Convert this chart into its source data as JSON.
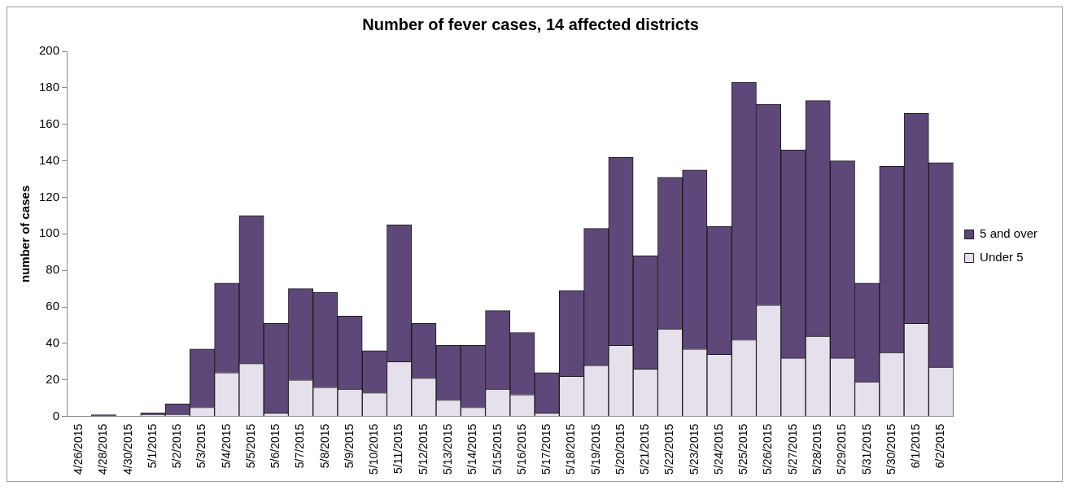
{
  "chart_data": {
    "type": "bar",
    "title": "Number of fever cases, 14 affected districts",
    "ylabel": "number of cases",
    "categories": [
      "4/26/2015",
      "4/28/2015",
      "4/30/2015",
      "5/1/2015",
      "5/2/2015",
      "5/3/2015",
      "5/4/2015",
      "5/5/2015",
      "5/6/2015",
      "5/7/2015",
      "5/8/2015",
      "5/9/2015",
      "5/10/2015",
      "5/11/2015",
      "5/12/2015",
      "5/13/2015",
      "5/14/2015",
      "5/15/2015",
      "5/16/2015",
      "5/17/2015",
      "5/18/2015",
      "5/19/2015",
      "5/20/2015",
      "5/21/2015",
      "5/22/2015",
      "5/23/2015",
      "5/24/2015",
      "5/25/2015",
      "5/26/2015",
      "5/27/2015",
      "5/28/2015",
      "5/29/2015",
      "5/31/2015",
      "5/30/2015",
      "6/1/2015",
      "6/2/2015"
    ],
    "series": [
      {
        "name": "Under 5",
        "color": "#e6e0ec",
        "values": [
          0,
          0,
          0,
          1,
          1,
          5,
          24,
          29,
          2,
          20,
          16,
          15,
          13,
          30,
          21,
          9,
          5,
          15,
          12,
          2,
          22,
          28,
          39,
          26,
          48,
          37,
          34,
          42,
          61,
          32,
          44,
          32,
          19,
          35,
          51,
          27
        ]
      },
      {
        "name": "5 and over",
        "color": "#5e4879",
        "values": [
          0,
          1,
          0,
          1,
          6,
          32,
          49,
          81,
          49,
          50,
          52,
          40,
          23,
          75,
          30,
          30,
          34,
          43,
          34,
          22,
          47,
          75,
          103,
          62,
          83,
          98,
          70,
          141,
          110,
          114,
          129,
          108,
          54,
          102,
          115,
          112
        ]
      }
    ],
    "stacked": true,
    "ylim": [
      0,
      200
    ],
    "yticks": [
      0,
      20,
      40,
      60,
      80,
      100,
      120,
      140,
      160,
      180,
      200
    ],
    "grid": false,
    "legend": "right"
  }
}
